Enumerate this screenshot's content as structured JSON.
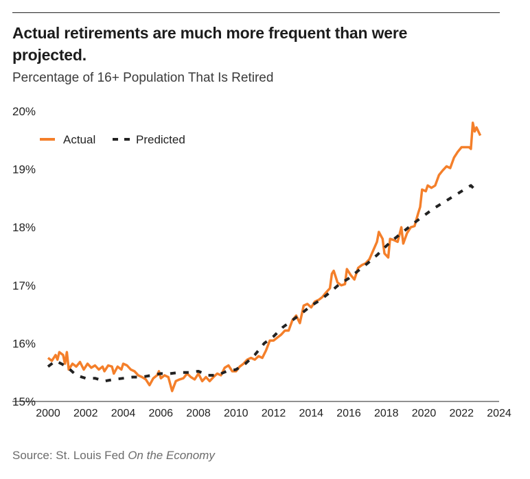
{
  "header": {
    "title": "Actual retirements are much more frequent than were projected.",
    "subtitle": "Percentage of 16+ Population That Is Retired"
  },
  "footer": {
    "source_prefix": "Source: St. Louis Fed ",
    "source_publication": "On the Economy"
  },
  "colors": {
    "actual": "#f47f2a",
    "predicted": "#222222",
    "axis": "#222222"
  },
  "chart_data": {
    "type": "line",
    "title": "Actual retirements are much more frequent than were projected.",
    "subtitle": "Percentage of 16+ Population That Is Retired",
    "xlim": [
      2000,
      2024
    ],
    "ylim": [
      15,
      20
    ],
    "x_ticks": [
      "2000",
      "2002",
      "2004",
      "2006",
      "2008",
      "2010",
      "2012",
      "2014",
      "2016",
      "2018",
      "2020",
      "2022",
      "2024"
    ],
    "y_ticks": [
      "15%",
      "16%",
      "17%",
      "18%",
      "19%",
      "20%"
    ],
    "grid": "none",
    "legend": "top-left",
    "series": [
      {
        "name": "Actual",
        "style": "solid",
        "points": [
          [
            2000.0,
            15.75
          ],
          [
            2000.2,
            15.7
          ],
          [
            2000.4,
            15.8
          ],
          [
            2000.5,
            15.72
          ],
          [
            2000.6,
            15.85
          ],
          [
            2000.8,
            15.8
          ],
          [
            2000.9,
            15.65
          ],
          [
            2001.0,
            15.85
          ],
          [
            2001.1,
            15.55
          ],
          [
            2001.3,
            15.65
          ],
          [
            2001.5,
            15.6
          ],
          [
            2001.7,
            15.68
          ],
          [
            2001.9,
            15.55
          ],
          [
            2002.1,
            15.65
          ],
          [
            2002.3,
            15.58
          ],
          [
            2002.5,
            15.62
          ],
          [
            2002.7,
            15.55
          ],
          [
            2002.9,
            15.6
          ],
          [
            2003.0,
            15.52
          ],
          [
            2003.2,
            15.62
          ],
          [
            2003.4,
            15.6
          ],
          [
            2003.5,
            15.48
          ],
          [
            2003.7,
            15.6
          ],
          [
            2003.9,
            15.55
          ],
          [
            2004.0,
            15.65
          ],
          [
            2004.2,
            15.62
          ],
          [
            2004.4,
            15.55
          ],
          [
            2004.6,
            15.52
          ],
          [
            2004.8,
            15.45
          ],
          [
            2005.0,
            15.42
          ],
          [
            2005.2,
            15.38
          ],
          [
            2005.4,
            15.28
          ],
          [
            2005.6,
            15.4
          ],
          [
            2005.8,
            15.45
          ],
          [
            2005.9,
            15.52
          ],
          [
            2006.0,
            15.4
          ],
          [
            2006.2,
            15.45
          ],
          [
            2006.4,
            15.42
          ],
          [
            2006.6,
            15.18
          ],
          [
            2006.8,
            15.35
          ],
          [
            2007.0,
            15.38
          ],
          [
            2007.2,
            15.4
          ],
          [
            2007.4,
            15.48
          ],
          [
            2007.6,
            15.42
          ],
          [
            2007.8,
            15.38
          ],
          [
            2008.0,
            15.48
          ],
          [
            2008.2,
            15.35
          ],
          [
            2008.4,
            15.42
          ],
          [
            2008.6,
            15.35
          ],
          [
            2008.8,
            15.42
          ],
          [
            2009.0,
            15.48
          ],
          [
            2009.2,
            15.45
          ],
          [
            2009.4,
            15.58
          ],
          [
            2009.6,
            15.62
          ],
          [
            2009.8,
            15.52
          ],
          [
            2010.0,
            15.52
          ],
          [
            2010.2,
            15.6
          ],
          [
            2010.4,
            15.65
          ],
          [
            2010.6,
            15.72
          ],
          [
            2010.8,
            15.75
          ],
          [
            2011.0,
            15.72
          ],
          [
            2011.2,
            15.78
          ],
          [
            2011.4,
            15.75
          ],
          [
            2011.6,
            15.88
          ],
          [
            2011.8,
            16.05
          ],
          [
            2012.0,
            16.05
          ],
          [
            2012.2,
            16.1
          ],
          [
            2012.4,
            16.15
          ],
          [
            2012.6,
            16.22
          ],
          [
            2012.8,
            16.22
          ],
          [
            2013.0,
            16.4
          ],
          [
            2013.2,
            16.48
          ],
          [
            2013.4,
            16.35
          ],
          [
            2013.6,
            16.65
          ],
          [
            2013.8,
            16.68
          ],
          [
            2014.0,
            16.62
          ],
          [
            2014.2,
            16.72
          ],
          [
            2014.4,
            16.75
          ],
          [
            2014.6,
            16.8
          ],
          [
            2014.8,
            16.88
          ],
          [
            2015.0,
            16.95
          ],
          [
            2015.1,
            17.2
          ],
          [
            2015.2,
            17.25
          ],
          [
            2015.4,
            17.05
          ],
          [
            2015.6,
            17.0
          ],
          [
            2015.8,
            17.02
          ],
          [
            2015.9,
            17.28
          ],
          [
            2016.1,
            17.18
          ],
          [
            2016.3,
            17.1
          ],
          [
            2016.5,
            17.3
          ],
          [
            2016.7,
            17.35
          ],
          [
            2016.9,
            17.38
          ],
          [
            2017.1,
            17.45
          ],
          [
            2017.3,
            17.6
          ],
          [
            2017.5,
            17.75
          ],
          [
            2017.6,
            17.92
          ],
          [
            2017.8,
            17.8
          ],
          [
            2017.9,
            17.55
          ],
          [
            2018.1,
            17.48
          ],
          [
            2018.2,
            17.8
          ],
          [
            2018.4,
            17.78
          ],
          [
            2018.6,
            17.75
          ],
          [
            2018.8,
            18.0
          ],
          [
            2018.9,
            17.72
          ],
          [
            2019.1,
            17.9
          ],
          [
            2019.3,
            18.0
          ],
          [
            2019.5,
            18.02
          ],
          [
            2019.7,
            18.25
          ],
          [
            2019.8,
            18.35
          ],
          [
            2019.9,
            18.65
          ],
          [
            2020.1,
            18.62
          ],
          [
            2020.2,
            18.72
          ],
          [
            2020.4,
            18.68
          ],
          [
            2020.6,
            18.72
          ],
          [
            2020.8,
            18.9
          ],
          [
            2021.0,
            18.98
          ],
          [
            2021.2,
            19.05
          ],
          [
            2021.4,
            19.02
          ],
          [
            2021.6,
            19.2
          ],
          [
            2021.8,
            19.3
          ],
          [
            2022.0,
            19.38
          ],
          [
            2022.2,
            19.38
          ],
          [
            2022.4,
            19.38
          ],
          [
            2022.5,
            19.35
          ],
          [
            2022.6,
            19.8
          ],
          [
            2022.7,
            19.65
          ],
          [
            2022.8,
            19.72
          ],
          [
            2023.0,
            19.58
          ]
        ]
      },
      {
        "name": "Predicted",
        "style": "dashed",
        "points": [
          [
            2000.0,
            15.6
          ],
          [
            2000.4,
            15.7
          ],
          [
            2001.0,
            15.6
          ],
          [
            2001.5,
            15.45
          ],
          [
            2002.0,
            15.4
          ],
          [
            2002.5,
            15.4
          ],
          [
            2003.0,
            15.35
          ],
          [
            2003.5,
            15.38
          ],
          [
            2004.0,
            15.4
          ],
          [
            2004.5,
            15.42
          ],
          [
            2005.0,
            15.42
          ],
          [
            2005.5,
            15.45
          ],
          [
            2006.0,
            15.48
          ],
          [
            2006.5,
            15.48
          ],
          [
            2007.0,
            15.5
          ],
          [
            2007.5,
            15.5
          ],
          [
            2008.0,
            15.52
          ],
          [
            2008.5,
            15.45
          ],
          [
            2009.0,
            15.45
          ],
          [
            2009.5,
            15.52
          ],
          [
            2010.0,
            15.55
          ],
          [
            2010.5,
            15.65
          ],
          [
            2011.0,
            15.8
          ],
          [
            2011.5,
            16.0
          ],
          [
            2012.0,
            16.12
          ],
          [
            2012.5,
            16.28
          ],
          [
            2013.0,
            16.4
          ],
          [
            2013.5,
            16.52
          ],
          [
            2014.0,
            16.65
          ],
          [
            2014.5,
            16.75
          ],
          [
            2015.0,
            16.88
          ],
          [
            2015.5,
            17.02
          ],
          [
            2016.0,
            17.12
          ],
          [
            2016.5,
            17.25
          ],
          [
            2017.0,
            17.38
          ],
          [
            2017.5,
            17.52
          ],
          [
            2018.0,
            17.68
          ],
          [
            2018.5,
            17.82
          ],
          [
            2019.0,
            17.95
          ],
          [
            2019.5,
            18.08
          ],
          [
            2020.0,
            18.2
          ],
          [
            2020.5,
            18.32
          ],
          [
            2021.0,
            18.42
          ],
          [
            2021.5,
            18.52
          ],
          [
            2022.0,
            18.62
          ],
          [
            2022.5,
            18.72
          ],
          [
            2022.8,
            18.62
          ]
        ]
      }
    ]
  }
}
